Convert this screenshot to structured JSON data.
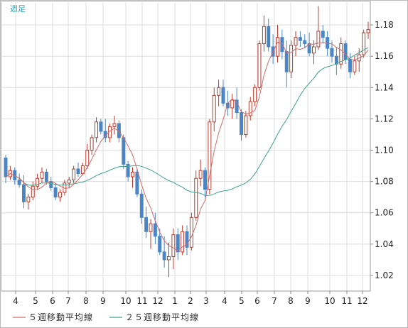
{
  "chart_data": {
    "type": "candlestick",
    "period_label": "週足",
    "yticks": [
      "1.18",
      "1.16",
      "1.14",
      "1.12",
      "1.10",
      "1.08",
      "1.06",
      "1.04",
      "1.02"
    ],
    "ylim": [
      1.01,
      1.195
    ],
    "xticks": [
      "4",
      "5",
      "6",
      "7",
      "8",
      "9",
      "10",
      "11",
      "12",
      "1",
      "2",
      "3",
      "4",
      "5",
      "6",
      "7",
      "8",
      "9",
      "10",
      "11",
      "12"
    ],
    "grid": true,
    "colors": {
      "up": "#c0392b",
      "down": "#4a86c5",
      "ma5": "#d06a6a",
      "ma25": "#3aa58a",
      "frame": "#bbbbbb",
      "grid": "#dddddd"
    },
    "legend": [
      {
        "key": "ma5",
        "label": "５週移動平均線",
        "color": "#d06a6a"
      },
      {
        "key": "ma25",
        "label": "２５週移動平均線",
        "color": "#3aa58a"
      }
    ],
    "candles": [
      [
        1.095,
        1.097,
        1.079,
        1.083
      ],
      [
        1.083,
        1.09,
        1.081,
        1.087
      ],
      [
        1.087,
        1.089,
        1.078,
        1.081
      ],
      [
        1.081,
        1.085,
        1.076,
        1.078
      ],
      [
        1.078,
        1.084,
        1.063,
        1.067
      ],
      [
        1.067,
        1.072,
        1.062,
        1.07
      ],
      [
        1.07,
        1.08,
        1.068,
        1.077
      ],
      [
        1.077,
        1.085,
        1.075,
        1.082
      ],
      [
        1.082,
        1.089,
        1.079,
        1.086
      ],
      [
        1.086,
        1.088,
        1.078,
        1.08
      ],
      [
        1.08,
        1.083,
        1.074,
        1.076
      ],
      [
        1.076,
        1.079,
        1.068,
        1.07
      ],
      [
        1.07,
        1.075,
        1.067,
        1.073
      ],
      [
        1.073,
        1.081,
        1.071,
        1.079
      ],
      [
        1.079,
        1.083,
        1.076,
        1.081
      ],
      [
        1.081,
        1.09,
        1.079,
        1.088
      ],
      [
        1.088,
        1.092,
        1.083,
        1.085
      ],
      [
        1.085,
        1.092,
        1.084,
        1.09
      ],
      [
        1.09,
        1.104,
        1.088,
        1.1
      ],
      [
        1.1,
        1.11,
        1.097,
        1.108
      ],
      [
        1.108,
        1.121,
        1.105,
        1.118
      ],
      [
        1.118,
        1.12,
        1.11,
        1.112
      ],
      [
        1.112,
        1.12,
        1.105,
        1.108
      ],
      [
        1.108,
        1.117,
        1.105,
        1.115
      ],
      [
        1.115,
        1.122,
        1.11,
        1.117
      ],
      [
        1.117,
        1.119,
        1.105,
        1.108
      ],
      [
        1.108,
        1.11,
        1.088,
        1.091
      ],
      [
        1.091,
        1.093,
        1.08,
        1.083
      ],
      [
        1.083,
        1.089,
        1.076,
        1.086
      ],
      [
        1.086,
        1.088,
        1.07,
        1.072
      ],
      [
        1.072,
        1.075,
        1.053,
        1.057
      ],
      [
        1.057,
        1.064,
        1.044,
        1.048
      ],
      [
        1.048,
        1.056,
        1.037,
        1.053
      ],
      [
        1.053,
        1.06,
        1.04,
        1.045
      ],
      [
        1.045,
        1.05,
        1.033,
        1.035
      ],
      [
        1.035,
        1.045,
        1.025,
        1.03
      ],
      [
        1.03,
        1.041,
        1.019,
        1.032
      ],
      [
        1.032,
        1.05,
        1.024,
        1.046
      ],
      [
        1.046,
        1.05,
        1.03,
        1.035
      ],
      [
        1.035,
        1.052,
        1.033,
        1.048
      ],
      [
        1.048,
        1.052,
        1.033,
        1.038
      ],
      [
        1.038,
        1.06,
        1.036,
        1.057
      ],
      [
        1.057,
        1.087,
        1.055,
        1.082
      ],
      [
        1.082,
        1.094,
        1.077,
        1.087
      ],
      [
        1.087,
        1.089,
        1.07,
        1.075
      ],
      [
        1.075,
        1.12,
        1.072,
        1.118
      ],
      [
        1.118,
        1.14,
        1.112,
        1.135
      ],
      [
        1.135,
        1.145,
        1.128,
        1.14
      ],
      [
        1.14,
        1.145,
        1.128,
        1.13
      ],
      [
        1.13,
        1.138,
        1.122,
        1.127
      ],
      [
        1.127,
        1.136,
        1.12,
        1.132
      ],
      [
        1.132,
        1.14,
        1.12,
        1.124
      ],
      [
        1.124,
        1.126,
        1.106,
        1.11
      ],
      [
        1.11,
        1.125,
        1.108,
        1.122
      ],
      [
        1.122,
        1.134,
        1.119,
        1.131
      ],
      [
        1.131,
        1.142,
        1.128,
        1.14
      ],
      [
        1.14,
        1.17,
        1.138,
        1.168
      ],
      [
        1.168,
        1.186,
        1.163,
        1.179
      ],
      [
        1.179,
        1.184,
        1.163,
        1.166
      ],
      [
        1.166,
        1.174,
        1.155,
        1.16
      ],
      [
        1.16,
        1.18,
        1.156,
        1.172
      ],
      [
        1.172,
        1.177,
        1.158,
        1.163
      ],
      [
        1.163,
        1.17,
        1.14,
        1.15
      ],
      [
        1.15,
        1.17,
        1.146,
        1.167
      ],
      [
        1.167,
        1.176,
        1.16,
        1.172
      ],
      [
        1.172,
        1.176,
        1.166,
        1.17
      ],
      [
        1.17,
        1.174,
        1.165,
        1.168
      ],
      [
        1.168,
        1.175,
        1.16,
        1.162
      ],
      [
        1.162,
        1.17,
        1.155,
        1.166
      ],
      [
        1.166,
        1.192,
        1.164,
        1.176
      ],
      [
        1.176,
        1.18,
        1.168,
        1.172
      ],
      [
        1.172,
        1.176,
        1.16,
        1.165
      ],
      [
        1.165,
        1.17,
        1.156,
        1.16
      ],
      [
        1.16,
        1.166,
        1.148,
        1.155
      ],
      [
        1.155,
        1.172,
        1.152,
        1.168
      ],
      [
        1.168,
        1.17,
        1.155,
        1.158
      ],
      [
        1.158,
        1.162,
        1.146,
        1.15
      ],
      [
        1.15,
        1.16,
        1.148,
        1.157
      ],
      [
        1.157,
        1.165,
        1.15,
        1.161
      ],
      [
        1.161,
        1.177,
        1.159,
        1.175
      ],
      [
        1.175,
        1.182,
        1.171,
        1.177
      ]
    ]
  }
}
